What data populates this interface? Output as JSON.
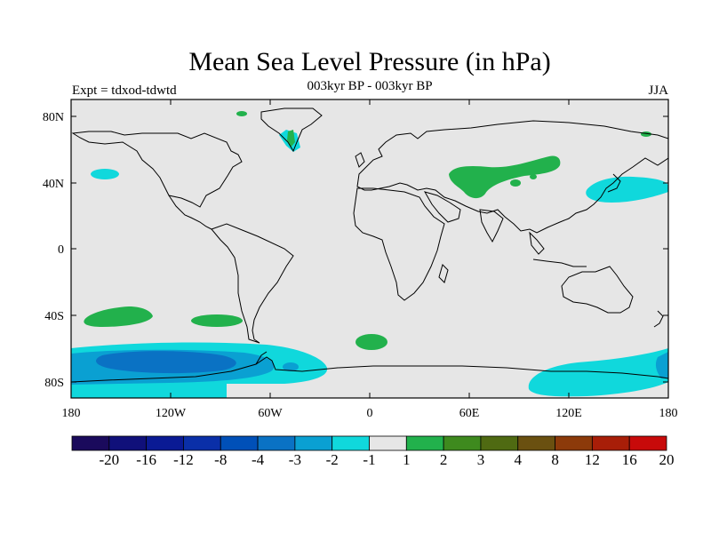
{
  "header": {
    "title": "Mean Sea Level Pressure (in hPa)",
    "subtitle": "003kyr BP - 003kyr BP",
    "left_label": "Expt = tdxod-tdwtd",
    "right_label": "JJA"
  },
  "axes": {
    "lon_ticks": [
      "180",
      "120W",
      "60W",
      "0",
      "60E",
      "120E",
      "180"
    ],
    "lat_ticks": [
      "80N",
      "40N",
      "0",
      "40S",
      "80S"
    ]
  },
  "colorbar": {
    "labels": [
      "-20",
      "-16",
      "-12",
      "-8",
      "-4",
      "-3",
      "-2",
      "-1",
      "1",
      "2",
      "3",
      "4",
      "8",
      "12",
      "16",
      "20"
    ],
    "colors": [
      "#1a0a5c",
      "#10107a",
      "#0a1a94",
      "#0a2fa8",
      "#0050b8",
      "#0a72c4",
      "#0aa0d2",
      "#10d8dc",
      "#e6e6e6",
      "#22b14c",
      "#3e8a1e",
      "#4f6a12",
      "#6a5010",
      "#8c3a0a",
      "#a81e08",
      "#c80a0a"
    ]
  },
  "map_colors": {
    "ocean": "#e6e6e6",
    "cyan": "#10d8dc",
    "light_blue": "#0aa0d2",
    "blue": "#0a72c4",
    "green": "#22b14c"
  }
}
